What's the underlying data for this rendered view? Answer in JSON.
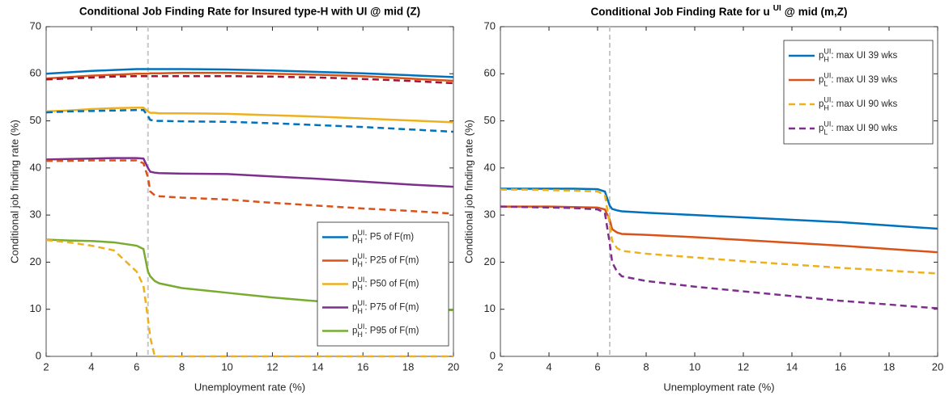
{
  "chart_data": [
    {
      "type": "line",
      "title": "Conditional Job Finding Rate for Insured type-H with UI @ mid (Z)",
      "x_label": "Unemployment rate (%)",
      "y_label": "Conditional job finding rate (%)",
      "x": [
        2,
        3,
        4,
        5,
        6,
        6.3,
        6.5,
        6.6,
        6.8,
        7,
        8,
        10,
        12,
        14,
        16,
        18,
        20
      ],
      "xlim": [
        2,
        20
      ],
      "ylim": [
        0,
        70
      ],
      "xticks": [
        2,
        4,
        6,
        8,
        10,
        12,
        14,
        16,
        18,
        20
      ],
      "yticks": [
        0,
        10,
        20,
        30,
        40,
        50,
        60,
        70
      ],
      "grid": false,
      "legend": "southeast",
      "vline": 6.5,
      "series": [
        {
          "name": {
            "base": "p",
            "sup": "UI",
            "sub": "H",
            "text": ": P5 of F(m)"
          },
          "color": "#0072bd",
          "dash": false,
          "values": [
            60,
            60.3,
            60.6,
            60.8,
            61,
            61,
            61,
            61,
            61,
            61,
            61,
            60.9,
            60.7,
            60.4,
            60.1,
            59.7,
            59.3
          ]
        },
        {
          "name": {
            "base": "p",
            "sup": "UI",
            "sub": "H",
            "text": ": P25 of F(m)"
          },
          "color": "#d95319",
          "dash": false,
          "values": [
            59,
            59.3,
            59.6,
            59.8,
            60,
            60,
            60,
            60.1,
            60.1,
            60.1,
            60.2,
            60.2,
            60,
            59.8,
            59.5,
            59,
            58.5
          ]
        },
        {
          "name": {
            "base": "p",
            "sup": "UI",
            "sub": "H",
            "text": ": P50 of F(m)"
          },
          "color": "#edb120",
          "dash": false,
          "values": [
            52,
            52.2,
            52.5,
            52.7,
            52.8,
            52.8,
            52,
            51.7,
            51.7,
            51.6,
            51.6,
            51.5,
            51.2,
            50.9,
            50.5,
            50.1,
            49.7
          ]
        },
        {
          "name": {
            "base": "p",
            "sup": "UI",
            "sub": "H",
            "text": ": P75 of F(m)"
          },
          "color": "#7e2f8e",
          "dash": false,
          "values": [
            41.8,
            41.9,
            42,
            42.1,
            42.1,
            42,
            40,
            39.2,
            39,
            38.9,
            38.8,
            38.7,
            38.2,
            37.7,
            37.1,
            36.5,
            36
          ]
        },
        {
          "name": {
            "base": "p",
            "sup": "UI",
            "sub": "H",
            "text": ": P95 of F(m)"
          },
          "color": "#77ac30",
          "dash": false,
          "values": [
            24.8,
            24.6,
            24.5,
            24.2,
            23.5,
            22.8,
            18,
            17,
            16,
            15.5,
            14.5,
            13.5,
            12.5,
            11.7,
            10.8,
            10.3,
            9.8
          ]
        },
        {
          "color": "#0072bd",
          "dash": true,
          "values": [
            51.8,
            52,
            52.1,
            52.2,
            52.3,
            52.3,
            51,
            50.2,
            50,
            50,
            49.9,
            49.8,
            49.5,
            49.1,
            48.7,
            48.2,
            47.7
          ]
        },
        {
          "color": "#a2142f",
          "dash": true,
          "values": [
            58.8,
            59,
            59.2,
            59.4,
            59.5,
            59.5,
            59.5,
            59.5,
            59.5,
            59.5,
            59.5,
            59.5,
            59.4,
            59.2,
            58.9,
            58.5,
            58
          ]
        },
        {
          "color": "#d95319",
          "dash": true,
          "values": [
            41.5,
            41.5,
            41.6,
            41.6,
            41.6,
            41,
            38,
            35,
            34.2,
            34,
            33.7,
            33.3,
            32.6,
            32,
            31.4,
            30.9,
            30.3
          ]
        },
        {
          "color": "#edb120",
          "dash": true,
          "values": [
            24.7,
            24.2,
            23.5,
            22.5,
            18,
            15,
            8,
            4,
            0,
            0,
            0,
            0,
            0,
            0,
            0,
            0,
            0
          ]
        }
      ]
    },
    {
      "type": "line",
      "title": {
        "text": "Conditional Job Finding Rate for u",
        "sup": "UI",
        "tail": "@ mid (m,Z)"
      },
      "x_label": "Unemployment rate (%)",
      "y_label": "Conditional job finding rate (%)",
      "x": [
        2,
        3,
        4,
        5,
        6,
        6.3,
        6.5,
        6.6,
        6.8,
        7,
        8,
        10,
        12,
        14,
        16,
        18,
        20
      ],
      "xlim": [
        2,
        20
      ],
      "ylim": [
        0,
        70
      ],
      "xticks": [
        2,
        4,
        6,
        8,
        10,
        12,
        14,
        16,
        18,
        20
      ],
      "yticks": [
        0,
        10,
        20,
        30,
        40,
        50,
        60,
        70
      ],
      "grid": false,
      "legend": "northeast",
      "vline": 6.5,
      "series": [
        {
          "name": {
            "base": "p",
            "sup": "UI",
            "sub": "H",
            "text": ": max UI 39 wks"
          },
          "color": "#0072bd",
          "dash": false,
          "values": [
            35.6,
            35.6,
            35.6,
            35.6,
            35.5,
            35,
            32,
            31.3,
            31,
            30.8,
            30.5,
            30,
            29.5,
            29,
            28.5,
            27.8,
            27.1
          ]
        },
        {
          "name": {
            "base": "p",
            "sup": "UI",
            "sub": "L",
            "text": ": max UI 39 wks"
          },
          "color": "#d95319",
          "dash": false,
          "values": [
            31.8,
            31.8,
            31.8,
            31.7,
            31.6,
            31.2,
            29,
            27,
            26.3,
            26,
            25.8,
            25.3,
            24.7,
            24.1,
            23.5,
            22.8,
            22.1
          ]
        },
        {
          "name": {
            "base": "p",
            "sup": "UI",
            "sub": "H",
            "text": ": max UI 90 wks"
          },
          "color": "#edb120",
          "dash": true,
          "values": [
            35.4,
            35.4,
            35.3,
            35.2,
            35,
            34.3,
            28,
            24.5,
            23,
            22.4,
            21.8,
            21,
            20.2,
            19.5,
            18.8,
            18.2,
            17.6
          ]
        },
        {
          "name": {
            "base": "p",
            "sup": "UI",
            "sub": "L",
            "text": ": max UI 90 wks"
          },
          "color": "#7e2f8e",
          "dash": true,
          "values": [
            31.8,
            31.7,
            31.6,
            31.5,
            31.2,
            30.5,
            24,
            20,
            18,
            17,
            16,
            14.8,
            13.8,
            12.8,
            11.8,
            11,
            10.2
          ]
        }
      ]
    }
  ]
}
